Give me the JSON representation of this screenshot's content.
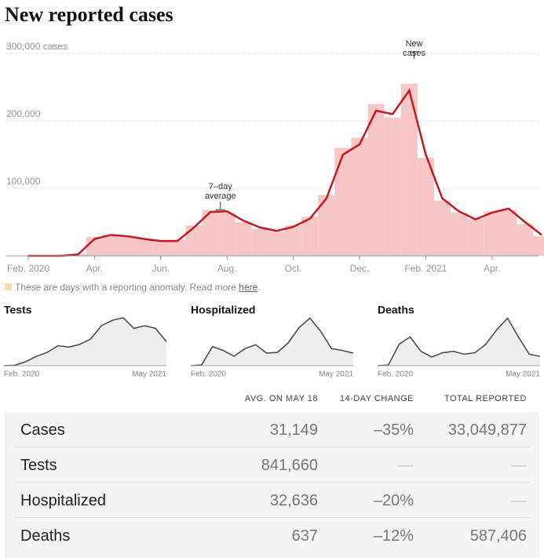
{
  "title": "New reported cases",
  "chart_data": [
    {
      "type": "line",
      "categories": [
        "Feb. 2020",
        null,
        null,
        null,
        "Apr.",
        null,
        null,
        null,
        "Jun.",
        null,
        null,
        null,
        "Aug.",
        null,
        null,
        null,
        "Oct.",
        null,
        null,
        null,
        "Dec.",
        null,
        null,
        null,
        "Feb. 2021",
        null,
        null,
        null,
        "Apr.",
        null,
        null,
        null
      ],
      "series": [
        {
          "name": "New cases",
          "type": "bar",
          "color": "#f7c6c6",
          "values": [
            0,
            0,
            100,
            3000,
            28000,
            32000,
            30000,
            26000,
            23000,
            24000,
            45000,
            68000,
            64000,
            50000,
            40000,
            36000,
            45000,
            58000,
            90000,
            160000,
            175000,
            225000,
            205000,
            255000,
            145000,
            82000,
            64000,
            55000,
            66000,
            68000,
            47000,
            29000
          ]
        },
        {
          "name": "7–day average",
          "type": "line",
          "color": "#c51a1f",
          "values": [
            0,
            0,
            0,
            2000,
            25000,
            31000,
            29000,
            25000,
            22000,
            22000,
            42000,
            65000,
            66000,
            52000,
            42000,
            37000,
            43000,
            55000,
            85000,
            150000,
            165000,
            215000,
            210000,
            245000,
            150000,
            85000,
            66000,
            54000,
            64000,
            70000,
            50000,
            31000
          ]
        }
      ],
      "ylim": [
        0,
        300000
      ],
      "yticks": [
        {
          "value": 100000,
          "label": "100,000"
        },
        {
          "value": 200000,
          "label": "200,000"
        },
        {
          "value": 300000,
          "label": "300,000 cases"
        }
      ],
      "grid": true
    },
    {
      "type": "area",
      "title": "Tests",
      "color": "#444",
      "categories": [
        "Feb. 2020",
        null,
        null,
        null,
        null,
        null,
        null,
        null,
        null,
        null,
        null,
        null,
        null,
        null,
        null,
        "May 2021"
      ],
      "values": [
        0,
        20000,
        150000,
        350000,
        500000,
        750000,
        700000,
        800000,
        1000000,
        1500000,
        1700000,
        1800000,
        1400000,
        1500000,
        1400000,
        900000
      ],
      "ylim": [
        0,
        2000000
      ]
    },
    {
      "type": "area",
      "title": "Hospitalized",
      "color": "#444",
      "categories": [
        "Feb. 2020",
        null,
        null,
        null,
        null,
        null,
        null,
        null,
        null,
        null,
        null,
        null,
        null,
        null,
        null,
        "May 2021"
      ],
      "values": [
        0,
        2000,
        50000,
        40000,
        25000,
        45000,
        55000,
        33000,
        35000,
        60000,
        100000,
        125000,
        90000,
        45000,
        40000,
        33000
      ],
      "ylim": [
        0,
        140000
      ]
    },
    {
      "type": "area",
      "title": "Deaths",
      "color": "#444",
      "categories": [
        "Feb. 2020",
        null,
        null,
        null,
        null,
        null,
        null,
        null,
        null,
        null,
        null,
        null,
        null,
        null,
        null,
        "May 2021"
      ],
      "values": [
        0,
        50,
        1500,
        2000,
        1000,
        600,
        900,
        1000,
        800,
        900,
        1500,
        2500,
        3300,
        2000,
        800,
        650
      ],
      "ylim": [
        0,
        3700
      ]
    }
  ],
  "note": {
    "text": "These are days with a reporting anomaly. Read more ",
    "link": "here",
    "end": "."
  },
  "table": {
    "headers": [
      "AVG. ON MAY 18",
      "14-DAY CHANGE",
      "TOTAL REPORTED"
    ],
    "rows": [
      [
        "Cases",
        "31,149",
        "–35%",
        "33,049,877"
      ],
      [
        "Tests",
        "841,660",
        "—",
        "—"
      ],
      [
        "Hospitalized",
        "32,636",
        "–20%",
        "—"
      ],
      [
        "Deaths",
        "637",
        "–12%",
        "587,406"
      ]
    ]
  }
}
